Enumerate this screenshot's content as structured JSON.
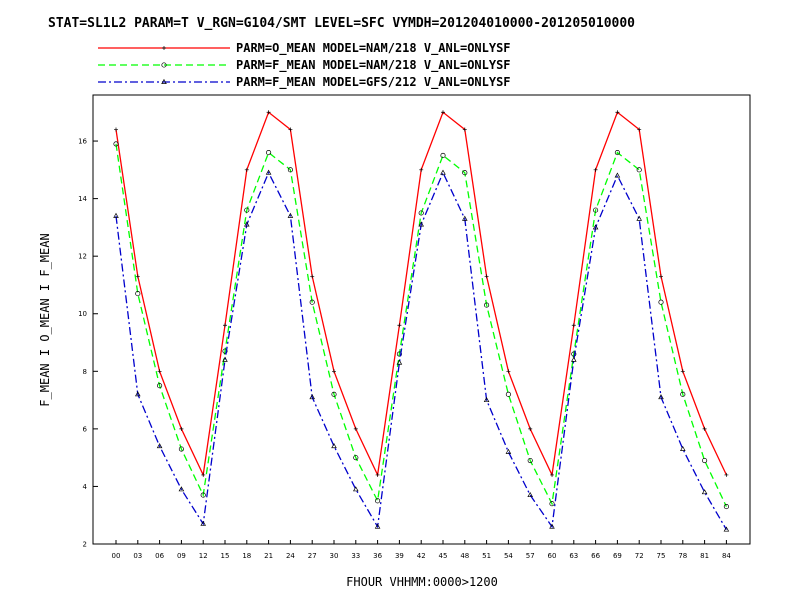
{
  "chart_data": {
    "type": "line",
    "title": "STAT=SL1L2 PARAM=T V_RGN=G104/SMT LEVEL=SFC VYMDH=201204010000-201205010000",
    "xlabel": "FHOUR VHHMM:0000>1200",
    "ylabel": "F_MEAN I O_MEAN I F_MEAN",
    "categories": [
      "00",
      "03",
      "06",
      "09",
      "12",
      "15",
      "18",
      "21",
      "24",
      "27",
      "30",
      "33",
      "36",
      "39",
      "42",
      "45",
      "48",
      "51",
      "54",
      "57",
      "60",
      "63",
      "66",
      "69",
      "72",
      "75",
      "78",
      "81",
      "84"
    ],
    "y_ticks": [
      "2",
      "4",
      "6",
      "8",
      "10",
      "12",
      "14",
      "16"
    ],
    "ylim": [
      2,
      17.6
    ],
    "grid": false,
    "legend_position": "top",
    "series": [
      {
        "name": "PARM=O_MEAN MODEL=NAM/218 V_ANL=ONLYSF",
        "color": "#ff0000",
        "dash": "solid",
        "marker": "plus",
        "values": [
          16.4,
          11.3,
          8.0,
          6.0,
          4.4,
          9.6,
          15.0,
          17.0,
          16.4,
          11.3,
          8.0,
          6.0,
          4.4,
          9.6,
          15.0,
          17.0,
          16.4,
          11.3,
          8.0,
          6.0,
          4.4,
          9.6,
          15.0,
          17.0,
          16.4,
          11.3,
          8.0,
          6.0,
          4.4
        ]
      },
      {
        "name": "PARM=F_MEAN MODEL=NAM/218 V_ANL=ONLYSF",
        "color": "#00ff00",
        "dash": "dashed",
        "marker": "circle",
        "values": [
          15.9,
          10.7,
          7.5,
          5.3,
          3.7,
          8.7,
          13.6,
          15.6,
          15.0,
          10.4,
          7.2,
          5.0,
          3.5,
          8.6,
          13.5,
          15.5,
          14.9,
          10.3,
          7.2,
          4.9,
          3.4,
          8.6,
          13.6,
          15.6,
          15.0,
          10.4,
          7.2,
          4.9,
          3.3
        ]
      },
      {
        "name": "PARM=F_MEAN MODEL=GFS/212 V_ANL=ONLYSF",
        "color": "#0000cc",
        "dash": "dash-dot",
        "marker": "triangle",
        "values": [
          13.4,
          7.2,
          5.4,
          3.9,
          2.7,
          8.4,
          13.1,
          14.9,
          13.4,
          7.1,
          5.4,
          3.9,
          2.6,
          8.3,
          13.1,
          14.9,
          13.3,
          7.0,
          5.2,
          3.7,
          2.6,
          8.4,
          13.0,
          14.8,
          13.3,
          7.1,
          5.3,
          3.8,
          2.5
        ]
      }
    ]
  }
}
